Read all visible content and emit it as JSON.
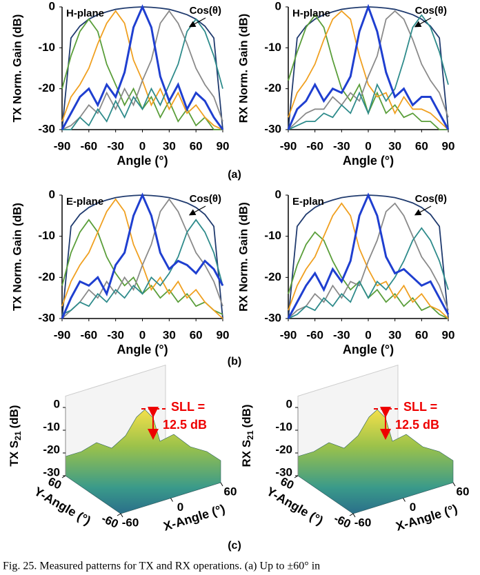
{
  "chart_data": [
    {
      "type": "line",
      "ylabel": "TX Norm. Gain (dB)",
      "xlabel": "Angle (°)",
      "annotation": "H-plane",
      "envelope_label": "Cos(θ)",
      "x": [
        -90,
        -80,
        -70,
        -60,
        -50,
        -40,
        -30,
        -20,
        -10,
        0,
        10,
        20,
        30,
        40,
        50,
        60,
        70,
        80,
        90
      ],
      "xlim": [
        -90,
        90
      ],
      "xticks": [
        -90,
        -60,
        -30,
        0,
        30,
        60,
        90
      ],
      "ylim": [
        -30,
        0
      ],
      "yticks": [
        0,
        -10,
        -20,
        -30
      ],
      "series": [
        {
          "color": "#1f3a6e",
          "values": [
            -30,
            -7.6,
            -4.7,
            -3,
            -1.9,
            -1.2,
            -0.6,
            -0.3,
            -0.1,
            0,
            -0.1,
            -0.3,
            -0.6,
            -1.2,
            -1.9,
            -3,
            -4.7,
            -7.6,
            -30
          ]
        },
        {
          "color": "#5a9e3a",
          "values": [
            -20,
            -12,
            -6,
            -3,
            -6,
            -14,
            -19,
            -24,
            -20,
            -25,
            -22,
            -27,
            -23,
            -28,
            -25,
            -29,
            -27,
            -30,
            -30
          ]
        },
        {
          "color": "#f0a020",
          "values": [
            -28,
            -22,
            -19,
            -15,
            -9,
            -4,
            -1,
            -4,
            -13,
            -18,
            -24,
            -20,
            -25,
            -21,
            -26,
            -24,
            -27,
            -29,
            -30
          ]
        },
        {
          "color": "#8a8a8a",
          "values": [
            -30,
            -29,
            -27,
            -24,
            -26,
            -21,
            -25,
            -20,
            -24,
            -18,
            -13,
            -4,
            -1,
            -4,
            -9,
            -15,
            -19,
            -22,
            -28
          ]
        },
        {
          "color": "#2e8b8b",
          "values": [
            -30,
            -30,
            -27,
            -29,
            -25,
            -28,
            -23,
            -27,
            -22,
            -25,
            -20,
            -24,
            -19,
            -14,
            -6,
            -3,
            -6,
            -12,
            -20
          ]
        },
        {
          "color": "#1f3fd0",
          "values": [
            -30,
            -26,
            -22,
            -20,
            -24,
            -19,
            -22,
            -16,
            -5,
            0,
            -5,
            -17,
            -23,
            -19,
            -25,
            -21,
            -23,
            -27,
            -30
          ]
        }
      ]
    },
    {
      "type": "line",
      "ylabel": "RX Norm. Gain (dB)",
      "xlabel": "Angle (°)",
      "annotation": "H-plane",
      "envelope_label": "Cos(θ)",
      "x": [
        -90,
        -80,
        -70,
        -60,
        -50,
        -40,
        -30,
        -20,
        -10,
        0,
        10,
        20,
        30,
        40,
        50,
        60,
        70,
        80,
        90
      ],
      "xlim": [
        -90,
        90
      ],
      "xticks": [
        -90,
        -60,
        -30,
        0,
        30,
        60,
        90
      ],
      "ylim": [
        -30,
        0
      ],
      "yticks": [
        0,
        -10,
        -20,
        -30
      ],
      "series": [
        {
          "color": "#1f3a6e",
          "values": [
            -30,
            -7.6,
            -4.7,
            -3,
            -1.9,
            -1.2,
            -0.6,
            -0.3,
            -0.1,
            0,
            -0.1,
            -0.3,
            -0.6,
            -1.2,
            -1.9,
            -3,
            -4.7,
            -7.6,
            -30
          ]
        },
        {
          "color": "#5a9e3a",
          "values": [
            -18,
            -11,
            -5,
            -2,
            -5,
            -13,
            -20,
            -23,
            -19,
            -26,
            -21,
            -26,
            -24,
            -27,
            -26,
            -28,
            -28,
            -30,
            -30
          ]
        },
        {
          "color": "#f0a020",
          "values": [
            -27,
            -21,
            -18,
            -14,
            -8,
            -3,
            -1,
            -3,
            -12,
            -19,
            -22,
            -21,
            -26,
            -22,
            -25,
            -25,
            -26,
            -28,
            -30
          ]
        },
        {
          "color": "#8a8a8a",
          "values": [
            -30,
            -28,
            -26,
            -25,
            -25,
            -22,
            -24,
            -21,
            -23,
            -17,
            -12,
            -3,
            -1,
            -3,
            -8,
            -14,
            -18,
            -21,
            -27
          ]
        },
        {
          "color": "#2e8b8b",
          "values": [
            -30,
            -29,
            -28,
            -28,
            -26,
            -27,
            -24,
            -26,
            -21,
            -26,
            -19,
            -23,
            -20,
            -13,
            -5,
            -2,
            -5,
            -11,
            -19
          ]
        },
        {
          "color": "#1f3fd0",
          "values": [
            -30,
            -25,
            -23,
            -19,
            -23,
            -20,
            -21,
            -17,
            -6,
            0,
            -6,
            -16,
            -22,
            -20,
            -24,
            -22,
            -22,
            -26,
            -30
          ]
        }
      ]
    },
    {
      "type": "line",
      "ylabel": "TX Norm. Gain (dB)",
      "xlabel": "Angle (°)",
      "annotation": "E-plane",
      "envelope_label": "Cos(θ)",
      "x": [
        -90,
        -80,
        -70,
        -60,
        -50,
        -40,
        -30,
        -20,
        -10,
        0,
        10,
        20,
        30,
        40,
        50,
        60,
        70,
        80,
        90
      ],
      "xlim": [
        -90,
        90
      ],
      "xticks": [
        -90,
        -60,
        -30,
        0,
        30,
        60,
        90
      ],
      "ylim": [
        -30,
        0
      ],
      "yticks": [
        0,
        -10,
        -20,
        -30
      ],
      "series": [
        {
          "color": "#1f3a6e",
          "values": [
            -30,
            -7.6,
            -4.7,
            -3,
            -1.9,
            -1.2,
            -0.6,
            -0.3,
            -0.1,
            0,
            -0.1,
            -0.3,
            -0.6,
            -1.2,
            -1.9,
            -3,
            -4.7,
            -7.6,
            -30
          ]
        },
        {
          "color": "#5a9e3a",
          "values": [
            -22,
            -14,
            -9,
            -6,
            -9,
            -15,
            -19,
            -22,
            -20,
            -24,
            -22,
            -25,
            -23,
            -26,
            -24,
            -27,
            -26,
            -28,
            -29
          ]
        },
        {
          "color": "#f0a020",
          "values": [
            -27,
            -21,
            -17,
            -14,
            -9,
            -4,
            -1,
            -4,
            -12,
            -17,
            -23,
            -20,
            -24,
            -21,
            -25,
            -23,
            -26,
            -28,
            -30
          ]
        },
        {
          "color": "#8a8a8a",
          "values": [
            -30,
            -28,
            -26,
            -23,
            -25,
            -21,
            -24,
            -20,
            -23,
            -17,
            -12,
            -4,
            -1,
            -4,
            -9,
            -14,
            -17,
            -21,
            -27
          ]
        },
        {
          "color": "#2e8b8b",
          "values": [
            -29,
            -28,
            -26,
            -27,
            -24,
            -26,
            -23,
            -25,
            -22,
            -24,
            -20,
            -22,
            -19,
            -15,
            -9,
            -6,
            -9,
            -14,
            -22
          ]
        },
        {
          "color": "#1f3fd0",
          "values": [
            -30,
            -25,
            -21,
            -22,
            -20,
            -24,
            -17,
            -14,
            -5,
            0,
            -5,
            -14,
            -18,
            -16,
            -17,
            -19,
            -16,
            -18,
            -22
          ]
        }
      ]
    },
    {
      "type": "line",
      "ylabel": "RX Norm. Gain (dB)",
      "xlabel": "Angle (°)",
      "annotation": "E-plan",
      "envelope_label": "Cos(θ)",
      "x": [
        -90,
        -80,
        -70,
        -60,
        -50,
        -40,
        -30,
        -20,
        -10,
        0,
        10,
        20,
        30,
        40,
        50,
        60,
        70,
        80,
        90
      ],
      "xlim": [
        -90,
        90
      ],
      "xticks": [
        -90,
        -60,
        -30,
        0,
        30,
        60,
        90
      ],
      "ylim": [
        -30,
        0
      ],
      "yticks": [
        0,
        -10,
        -20,
        -30
      ],
      "series": [
        {
          "color": "#1f3a6e",
          "values": [
            -30,
            -7.6,
            -4.7,
            -3,
            -1.9,
            -1.2,
            -0.6,
            -0.3,
            -0.1,
            0,
            -0.1,
            -0.3,
            -0.6,
            -1.2,
            -1.9,
            -3,
            -4.7,
            -7.6,
            -30
          ]
        },
        {
          "color": "#5a9e3a",
          "values": [
            -24,
            -17,
            -12,
            -9,
            -11,
            -16,
            -20,
            -23,
            -21,
            -25,
            -23,
            -26,
            -24,
            -27,
            -25,
            -28,
            -27,
            -29,
            -30
          ]
        },
        {
          "color": "#f0a020",
          "values": [
            -28,
            -22,
            -18,
            -15,
            -10,
            -5,
            -2,
            -5,
            -13,
            -18,
            -22,
            -21,
            -25,
            -22,
            -26,
            -24,
            -27,
            -28,
            -30
          ]
        },
        {
          "color": "#8a8a8a",
          "values": [
            -30,
            -28,
            -27,
            -24,
            -26,
            -22,
            -25,
            -21,
            -22,
            -16,
            -11,
            -4,
            -2,
            -5,
            -10,
            -15,
            -18,
            -22,
            -28
          ]
        },
        {
          "color": "#2e8b8b",
          "values": [
            -30,
            -29,
            -27,
            -28,
            -25,
            -27,
            -24,
            -26,
            -21,
            -25,
            -21,
            -23,
            -20,
            -16,
            -11,
            -8,
            -11,
            -16,
            -23
          ]
        },
        {
          "color": "#1f3fd0",
          "values": [
            -30,
            -26,
            -22,
            -19,
            -23,
            -18,
            -21,
            -16,
            -5,
            0,
            -5,
            -15,
            -19,
            -18,
            -20,
            -22,
            -21,
            -25,
            -29
          ]
        }
      ]
    },
    {
      "type": "surface3d",
      "zlabel": {
        "main": "TX S",
        "sub": "21",
        "unit": "(dB)"
      },
      "xlabel": "X-Angle (°)",
      "ylabel": "Y-Angle (°)",
      "zlim": [
        -30,
        0
      ],
      "zticks": [
        0,
        -10,
        -20,
        -30
      ],
      "xticks": [
        -60,
        0,
        60
      ],
      "yticks": [
        60,
        -60
      ],
      "annotation": [
        "SLL =",
        "12.5 dB"
      ]
    },
    {
      "type": "surface3d",
      "zlabel": {
        "main": "RX S",
        "sub": "21",
        "unit": "(dB)"
      },
      "xlabel": "X-Angle (°)",
      "ylabel": "Y-Angle (°)",
      "zlim": [
        -30,
        0
      ],
      "zticks": [
        0,
        -10,
        -20,
        -30
      ],
      "xticks": [
        -60,
        0,
        60
      ],
      "yticks": [
        60,
        -60
      ],
      "annotation": [
        "SLL =",
        "12.5 dB"
      ]
    }
  ],
  "panel_labels": [
    "(a)",
    "(b)",
    "(c)"
  ],
  "caption": "Fig. 25.   Measured patterns for TX and RX operations. (a) Up to ±60° in"
}
